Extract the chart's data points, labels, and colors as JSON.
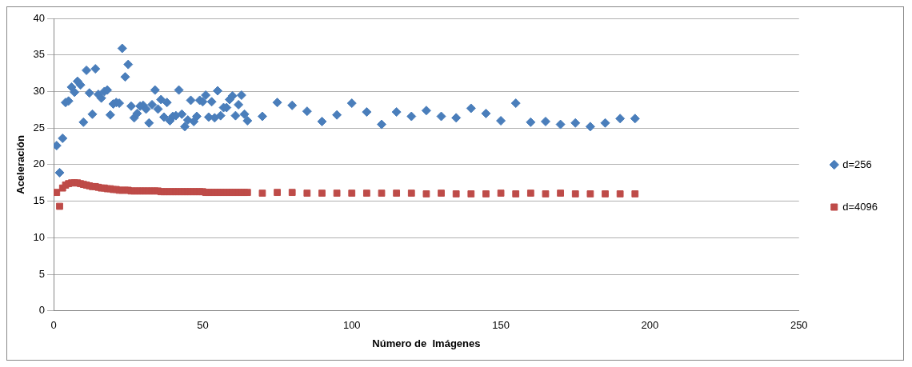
{
  "chart_data": {
    "type": "scatter",
    "xlabel": "Número de  Imágenes",
    "ylabel": "Aceleración",
    "xlim": [
      0,
      250
    ],
    "xticks": [
      0,
      50,
      100,
      150,
      200,
      250
    ],
    "ylim": [
      0,
      40
    ],
    "yticks": [
      0,
      5,
      10,
      15,
      20,
      25,
      30,
      35,
      40
    ],
    "grid": "y",
    "legend": "right",
    "series": [
      {
        "name": "d=256",
        "color": "#4a7ebb",
        "marker": "diamond",
        "x": [
          1,
          2,
          3,
          4,
          5,
          6,
          7,
          8,
          9,
          10,
          11,
          12,
          13,
          14,
          15,
          16,
          17,
          18,
          19,
          20,
          21,
          22,
          23,
          24,
          25,
          26,
          27,
          28,
          29,
          30,
          31,
          32,
          33,
          34,
          35,
          36,
          37,
          38,
          39,
          40,
          41,
          42,
          43,
          44,
          45,
          46,
          47,
          48,
          49,
          50,
          51,
          52,
          53,
          54,
          55,
          56,
          57,
          58,
          59,
          60,
          61,
          62,
          63,
          64,
          65,
          70,
          75,
          80,
          85,
          90,
          95,
          100,
          105,
          110,
          115,
          120,
          125,
          130,
          135,
          140,
          145,
          150,
          155,
          160,
          165,
          170,
          175,
          180,
          185,
          190,
          195
        ],
        "values": [
          22.6,
          18.9,
          23.6,
          28.5,
          28.7,
          30.6,
          29.9,
          31.4,
          30.9,
          25.8,
          32.9,
          29.8,
          26.9,
          33.1,
          29.6,
          29.1,
          30.0,
          30.2,
          26.8,
          28.3,
          28.5,
          28.4,
          35.9,
          32.0,
          33.7,
          28.0,
          26.4,
          27.0,
          28.0,
          28.1,
          27.6,
          25.7,
          28.2,
          30.2,
          27.6,
          28.9,
          26.5,
          28.5,
          26.0,
          26.6,
          26.7,
          30.2,
          26.9,
          25.2,
          26.1,
          28.8,
          25.9,
          26.6,
          28.8,
          28.6,
          29.5,
          26.5,
          28.6,
          26.4,
          30.1,
          26.7,
          27.8,
          27.8,
          28.9,
          29.4,
          26.7,
          28.2,
          29.5,
          26.9,
          26.0,
          26.6,
          28.5,
          28.1,
          27.3,
          25.9,
          26.8,
          28.4,
          27.2,
          25.5,
          27.2,
          26.6,
          27.4,
          26.6,
          26.4,
          27.7,
          27.0,
          26.0,
          28.4,
          25.8,
          25.9,
          25.5,
          25.7,
          25.2,
          25.7,
          26.3,
          26.3
        ]
      },
      {
        "name": "d=4096",
        "color": "#be4b48",
        "marker": "square",
        "x": [
          1,
          2,
          3,
          4,
          5,
          6,
          7,
          8,
          9,
          10,
          11,
          12,
          13,
          14,
          15,
          16,
          17,
          18,
          19,
          20,
          21,
          22,
          23,
          24,
          25,
          26,
          27,
          28,
          29,
          30,
          31,
          32,
          33,
          34,
          35,
          36,
          37,
          38,
          39,
          40,
          41,
          42,
          43,
          44,
          45,
          46,
          47,
          48,
          49,
          50,
          51,
          52,
          53,
          54,
          55,
          56,
          57,
          58,
          59,
          60,
          61,
          62,
          63,
          64,
          65,
          70,
          75,
          80,
          85,
          90,
          95,
          100,
          105,
          110,
          115,
          120,
          125,
          130,
          135,
          140,
          145,
          150,
          155,
          160,
          165,
          170,
          175,
          180,
          185,
          190,
          195
        ],
        "values": [
          16.2,
          14.3,
          16.8,
          17.2,
          17.4,
          17.5,
          17.5,
          17.5,
          17.4,
          17.3,
          17.2,
          17.1,
          17.0,
          17.0,
          16.9,
          16.8,
          16.8,
          16.7,
          16.7,
          16.6,
          16.6,
          16.5,
          16.5,
          16.5,
          16.5,
          16.4,
          16.4,
          16.4,
          16.4,
          16.4,
          16.4,
          16.4,
          16.4,
          16.4,
          16.4,
          16.3,
          16.3,
          16.3,
          16.3,
          16.3,
          16.3,
          16.3,
          16.3,
          16.3,
          16.3,
          16.3,
          16.3,
          16.3,
          16.3,
          16.3,
          16.2,
          16.2,
          16.2,
          16.2,
          16.2,
          16.2,
          16.2,
          16.2,
          16.2,
          16.2,
          16.2,
          16.2,
          16.2,
          16.2,
          16.2,
          16.1,
          16.2,
          16.2,
          16.1,
          16.1,
          16.1,
          16.1,
          16.1,
          16.1,
          16.1,
          16.1,
          16.0,
          16.1,
          16.0,
          16.0,
          16.0,
          16.1,
          16.0,
          16.1,
          16.0,
          16.1,
          16.0,
          16.0,
          16.0,
          16.0,
          16.0
        ]
      }
    ]
  }
}
